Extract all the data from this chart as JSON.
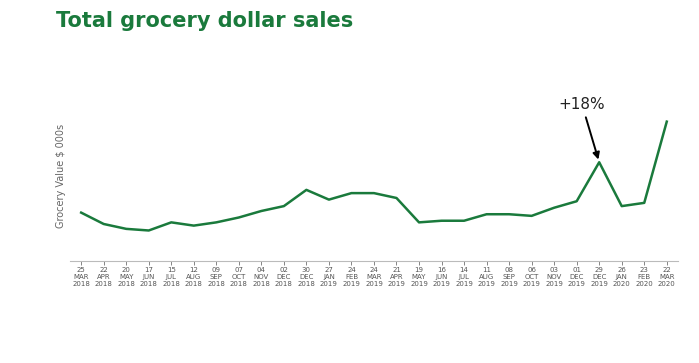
{
  "title": "Total grocery dollar sales",
  "ylabel": "Grocery Value $ 000s",
  "line_color": "#1a7a3c",
  "title_color": "#1a7a3c",
  "annotation_text": "+18%",
  "background_color": "#ffffff",
  "tick_labels": [
    [
      "25",
      "MAR",
      "2018"
    ],
    [
      "22",
      "APR",
      "2018"
    ],
    [
      "20",
      "MAY",
      "2018"
    ],
    [
      "17",
      "JUN",
      "2018"
    ],
    [
      "15",
      "JUL",
      "2018"
    ],
    [
      "12",
      "AUG",
      "2018"
    ],
    [
      "09",
      "SEP",
      "2018"
    ],
    [
      "07",
      "OCT",
      "2018"
    ],
    [
      "04",
      "NOV",
      "2018"
    ],
    [
      "02",
      "DEC",
      "2018"
    ],
    [
      "30",
      "DEC",
      "2018"
    ],
    [
      "27",
      "JAN",
      "2019"
    ],
    [
      "24",
      "FEB",
      "2019"
    ],
    [
      "24",
      "MAR",
      "2019"
    ],
    [
      "21",
      "APR",
      "2019"
    ],
    [
      "19",
      "MAY",
      "2019"
    ],
    [
      "16",
      "JUN",
      "2019"
    ],
    [
      "14",
      "JUL",
      "2019"
    ],
    [
      "11",
      "AUG",
      "2019"
    ],
    [
      "08",
      "SEP",
      "2019"
    ],
    [
      "06",
      "OCT",
      "2019"
    ],
    [
      "03",
      "NOV",
      "2019"
    ],
    [
      "01",
      "DEC",
      "2019"
    ],
    [
      "29",
      "DEC",
      "2019"
    ],
    [
      "26",
      "JAN",
      "2020"
    ],
    [
      "23",
      "FEB",
      "2020"
    ],
    [
      "22",
      "MAR",
      "2020"
    ]
  ],
  "y_values": [
    100,
    93,
    90,
    89,
    94,
    92,
    94,
    97,
    101,
    104,
    114,
    108,
    112,
    112,
    109,
    94,
    95,
    95,
    99,
    99,
    98,
    103,
    107,
    131,
    104,
    106,
    156
  ],
  "ylim": [
    70,
    175
  ],
  "figsize": [
    6.99,
    3.63
  ],
  "dpi": 100
}
